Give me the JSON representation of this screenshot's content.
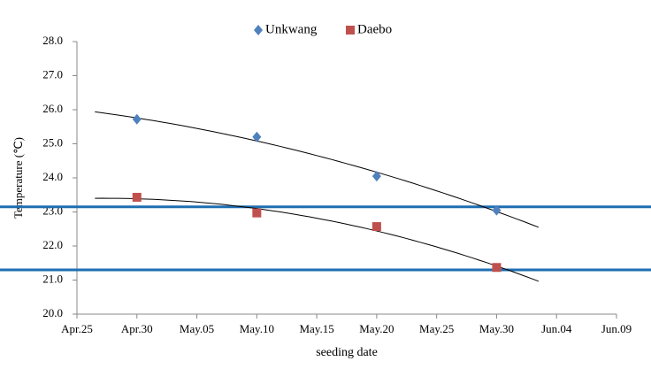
{
  "chart_data": {
    "type": "scatter",
    "x_label": "seeding date",
    "y_label": "Temperature (℃)",
    "series": [
      {
        "name": "Unkwang",
        "color": "#4f81bd",
        "marker": "diamond",
        "x": [
          "Apr.30",
          "May.10",
          "May.20",
          "May.30"
        ],
        "values": [
          25.72,
          25.2,
          24.05,
          23.05
        ]
      },
      {
        "name": "Daebo",
        "color": "#c0504d",
        "marker": "square",
        "x": [
          "Apr.30",
          "May.10",
          "May.20",
          "May.30"
        ],
        "values": [
          23.43,
          22.97,
          22.57,
          21.37
        ]
      }
    ],
    "trendline": "polynomial",
    "hlines": [
      23.15,
      21.3
    ],
    "hline_color": "#1f6fb2",
    "xlim": [
      "Apr.25",
      "Jun.09"
    ],
    "xticks": [
      "Apr.25",
      "Apr.30",
      "May.05",
      "May.10",
      "May.15",
      "May.20",
      "May.25",
      "May.30",
      "Jun.04",
      "Jun.09"
    ],
    "ylim": [
      20,
      28
    ],
    "yticks": [
      {
        "value": 20,
        "label": "20.0"
      },
      {
        "value": 21,
        "label": "21.0"
      },
      {
        "value": 22,
        "label": "22.0"
      },
      {
        "value": 23,
        "label": "23.0"
      },
      {
        "value": 24,
        "label": "24.0"
      },
      {
        "value": 25,
        "label": "25.0"
      },
      {
        "value": 26,
        "label": "26.0"
      },
      {
        "value": 27,
        "label": "27.0"
      },
      {
        "value": 28,
        "label": "28.0"
      }
    ],
    "legend": "top"
  }
}
